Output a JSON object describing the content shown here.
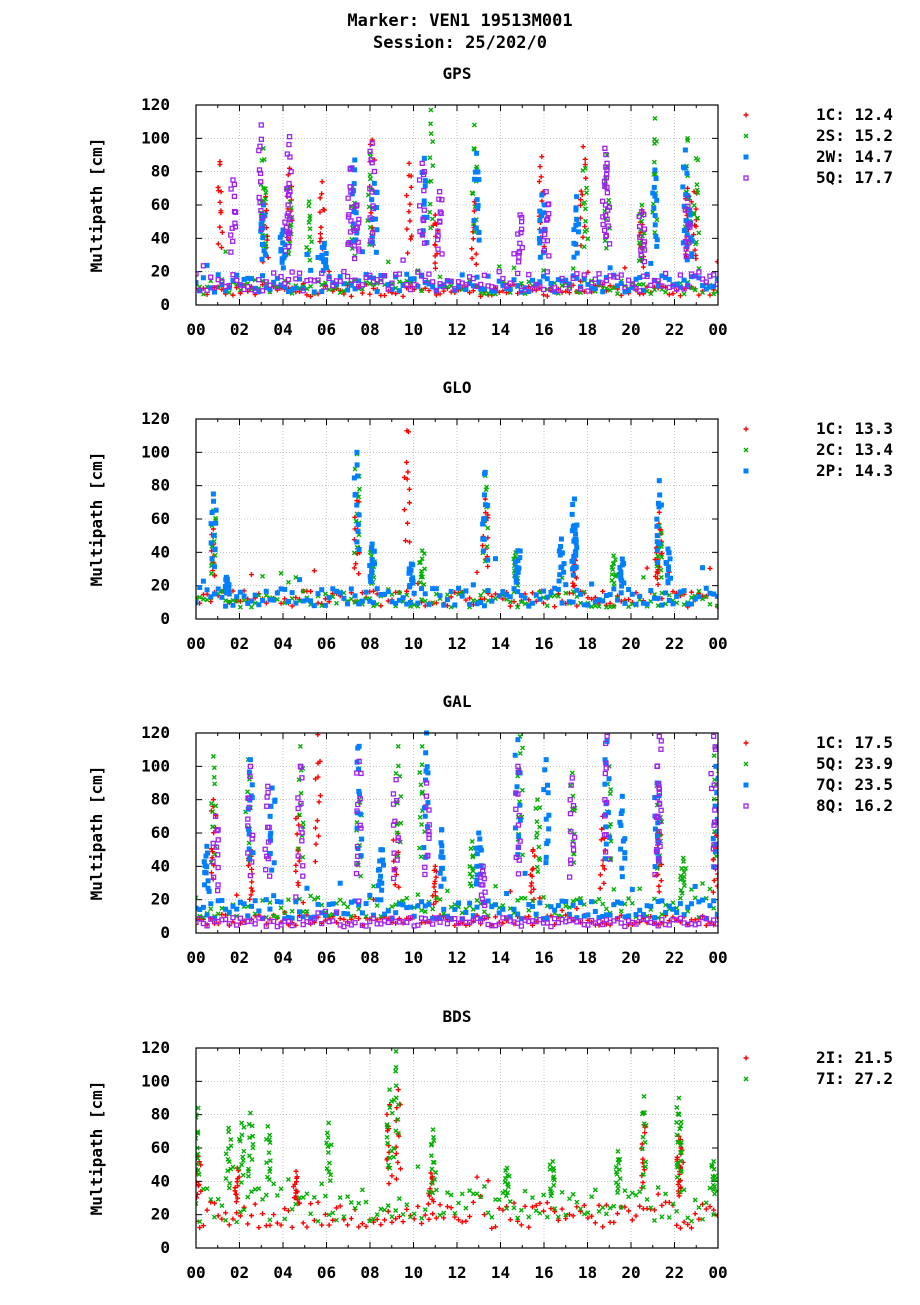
{
  "header": {
    "marker": "Marker: VEN1 19513M001",
    "session": "Session: 25/202/0"
  },
  "chart_data": [
    {
      "type": "scatter",
      "title": "GPS",
      "ylabel": "Multipath [cm]",
      "ylim": [
        0,
        120
      ],
      "xlim": [
        0,
        24
      ],
      "yticks": [
        "0",
        "20",
        "40",
        "60",
        "80",
        "100",
        "120"
      ],
      "xticks": [
        "00",
        "02",
        "04",
        "06",
        "08",
        "10",
        "12",
        "14",
        "16",
        "18",
        "20",
        "22",
        "00"
      ],
      "grid": true,
      "legend_position": "right",
      "series": [
        {
          "name": "1C",
          "stat": "12.4",
          "color": "#ff0000",
          "marker": "plus",
          "base": 8,
          "spikes": [
            [
              1.1,
              86
            ],
            [
              3.2,
              65
            ],
            [
              4.3,
              82
            ],
            [
              5.8,
              74
            ],
            [
              8.1,
              99
            ],
            [
              9.8,
              85
            ],
            [
              11.0,
              54
            ],
            [
              12.8,
              62
            ],
            [
              15.9,
              89
            ],
            [
              17.8,
              95
            ],
            [
              20.5,
              57
            ],
            [
              22.9,
              68
            ],
            [
              22.6,
              70
            ]
          ]
        },
        {
          "name": "2S",
          "stat": "15.2",
          "color": "#00b000",
          "marker": "cross",
          "base": 10,
          "spikes": [
            [
              3.1,
              94
            ],
            [
              3.1,
              70
            ],
            [
              4.3,
              70
            ],
            [
              5.2,
              62
            ],
            [
              7.2,
              71
            ],
            [
              8.0,
              91
            ],
            [
              10.8,
              117
            ],
            [
              12.8,
              108
            ],
            [
              18.9,
              90
            ],
            [
              17.9,
              82
            ],
            [
              21.1,
              112
            ],
            [
              22.6,
              100
            ],
            [
              23.0,
              88
            ],
            [
              20.5,
              60
            ]
          ]
        },
        {
          "name": "2W",
          "stat": "14.7",
          "color": "#0080ff",
          "marker": "square",
          "base": 12,
          "spikes": [
            [
              3.1,
              60
            ],
            [
              4.0,
              45
            ],
            [
              5.9,
              37
            ],
            [
              7.3,
              87
            ],
            [
              8.2,
              73
            ],
            [
              10.5,
              88
            ],
            [
              12.9,
              91
            ],
            [
              15.9,
              66
            ],
            [
              17.5,
              65
            ],
            [
              21.1,
              81
            ],
            [
              22.5,
              93
            ],
            [
              22.7,
              57
            ]
          ]
        },
        {
          "name": "5Q",
          "stat": "17.7",
          "color": "#a020f0",
          "marker": "open-square",
          "base": 13,
          "spikes": [
            [
              1.7,
              75
            ],
            [
              3.0,
              108
            ],
            [
              4.3,
              101
            ],
            [
              4.2,
              70
            ],
            [
              7.1,
              82
            ],
            [
              7.4,
              60
            ],
            [
              8.1,
              97
            ],
            [
              10.4,
              85
            ],
            [
              11.2,
              68
            ],
            [
              14.9,
              54
            ],
            [
              16.1,
              68
            ],
            [
              18.8,
              94
            ],
            [
              18.9,
              85
            ],
            [
              20.5,
              56
            ],
            [
              22.6,
              64
            ]
          ]
        }
      ]
    },
    {
      "type": "scatter",
      "title": "GLO",
      "ylabel": "Multipath [cm]",
      "ylim": [
        0,
        120
      ],
      "xlim": [
        0,
        24
      ],
      "yticks": [
        "0",
        "20",
        "40",
        "60",
        "80",
        "100",
        "120"
      ],
      "xticks": [
        "00",
        "02",
        "04",
        "06",
        "08",
        "10",
        "12",
        "14",
        "16",
        "18",
        "20",
        "22",
        "00"
      ],
      "grid": true,
      "legend_position": "right",
      "series": [
        {
          "name": "1C",
          "stat": "13.3",
          "color": "#ff0000",
          "marker": "plus",
          "base": 11,
          "spikes": [
            [
              0.8,
              54
            ],
            [
              7.4,
              71
            ],
            [
              9.7,
              113
            ],
            [
              13.3,
              72
            ],
            [
              17.4,
              36
            ],
            [
              21.3,
              64
            ],
            [
              21.2,
              43
            ]
          ]
        },
        {
          "name": "2C",
          "stat": "13.4",
          "color": "#00b000",
          "marker": "cross",
          "base": 11,
          "spikes": [
            [
              0.8,
              65
            ],
            [
              7.4,
              99
            ],
            [
              8.1,
              42
            ],
            [
              10.4,
              41
            ],
            [
              13.3,
              86
            ],
            [
              14.7,
              40
            ],
            [
              19.2,
              38
            ],
            [
              21.3,
              56
            ]
          ]
        },
        {
          "name": "2P",
          "stat": "14.3",
          "color": "#0080ff",
          "marker": "square",
          "base": 12,
          "spikes": [
            [
              0.8,
              75
            ],
            [
              1.4,
              25
            ],
            [
              7.4,
              100
            ],
            [
              8.1,
              45
            ],
            [
              9.9,
              33
            ],
            [
              13.3,
              88
            ],
            [
              14.8,
              41
            ],
            [
              16.8,
              48
            ],
            [
              17.4,
              72
            ],
            [
              17.4,
              56
            ],
            [
              19.6,
              36
            ],
            [
              21.3,
              83
            ],
            [
              21.7,
              42
            ]
          ]
        }
      ]
    },
    {
      "type": "scatter",
      "title": "GAL",
      "ylabel": "Multipath [cm]",
      "ylim": [
        0,
        120
      ],
      "xlim": [
        0,
        24
      ],
      "yticks": [
        "0",
        "20",
        "40",
        "60",
        "80",
        "100",
        "120"
      ],
      "xticks": [
        "00",
        "02",
        "04",
        "06",
        "08",
        "10",
        "12",
        "14",
        "16",
        "18",
        "20",
        "22",
        "00"
      ],
      "grid": true,
      "legend_position": "right",
      "series": [
        {
          "name": "1C",
          "stat": "17.5",
          "color": "#ff0000",
          "marker": "plus",
          "base": 7,
          "spikes": [
            [
              0.8,
              80
            ],
            [
              2.5,
              50
            ],
            [
              4.7,
              70
            ],
            [
              5.6,
              119
            ],
            [
              9.2,
              66
            ],
            [
              11.0,
              40
            ],
            [
              15.5,
              50
            ],
            [
              18.7,
              70
            ],
            [
              21.3,
              60
            ],
            [
              23.9,
              60
            ]
          ]
        },
        {
          "name": "5Q",
          "stat": "23.9",
          "color": "#00b000",
          "marker": "cross",
          "base": 14,
          "spikes": [
            [
              0.8,
              106
            ],
            [
              2.4,
              104
            ],
            [
              4.8,
              112
            ],
            [
              7.5,
              80
            ],
            [
              9.3,
              112
            ],
            [
              10.4,
              112
            ],
            [
              12.7,
              55
            ],
            [
              14.9,
              118
            ],
            [
              15.7,
              80
            ],
            [
              17.3,
              96
            ],
            [
              19.0,
              100
            ],
            [
              21.3,
              90
            ],
            [
              22.4,
              45
            ],
            [
              23.9,
              112
            ]
          ]
        },
        {
          "name": "7Q",
          "stat": "23.5",
          "color": "#0080ff",
          "marker": "square",
          "base": 13,
          "spikes": [
            [
              0.5,
              52
            ],
            [
              2.5,
              104
            ],
            [
              3.5,
              87
            ],
            [
              7.5,
              112
            ],
            [
              8.5,
              50
            ],
            [
              10.6,
              120
            ],
            [
              11.3,
              62
            ],
            [
              13.0,
              60
            ],
            [
              14.8,
              116
            ],
            [
              16.1,
              104
            ],
            [
              18.9,
              115
            ],
            [
              19.6,
              82
            ],
            [
              21.2,
              90
            ],
            [
              23.9,
              100
            ]
          ]
        },
        {
          "name": "8Q",
          "stat": "16.2",
          "color": "#a020f0",
          "marker": "open-square",
          "base": 6,
          "spikes": [
            [
              0.9,
              70
            ],
            [
              2.5,
              100
            ],
            [
              3.3,
              88
            ],
            [
              4.8,
              100
            ],
            [
              7.5,
              103
            ],
            [
              9.2,
              92
            ],
            [
              10.6,
              90
            ],
            [
              13.2,
              40
            ],
            [
              14.8,
              100
            ],
            [
              17.3,
              93
            ],
            [
              18.9,
              118
            ],
            [
              21.3,
              118
            ],
            [
              21.2,
              100
            ],
            [
              23.8,
              118
            ]
          ]
        }
      ]
    },
    {
      "type": "scatter",
      "title": "BDS",
      "ylabel": "Multipath [cm]",
      "ylim": [
        0,
        120
      ],
      "xlim": [
        0,
        24
      ],
      "yticks": [
        "0",
        "20",
        "40",
        "60",
        "80",
        "100",
        "120"
      ],
      "xticks": [
        "00",
        "02",
        "04",
        "06",
        "08",
        "10",
        "12",
        "14",
        "16",
        "18",
        "20",
        "22",
        "00"
      ],
      "grid": true,
      "legend_position": "right",
      "series": [
        {
          "name": "2I",
          "stat": "21.5",
          "color": "#ff0000",
          "marker": "plus",
          "base": 18,
          "spikes": [
            [
              0.1,
              55
            ],
            [
              1.9,
              48
            ],
            [
              4.6,
              46
            ],
            [
              8.9,
              86
            ],
            [
              9.3,
              95
            ],
            [
              10.8,
              45
            ],
            [
              20.6,
              74
            ],
            [
              22.2,
              67
            ],
            [
              22.3,
              60
            ]
          ]
        },
        {
          "name": "7I",
          "stat": "27.2",
          "color": "#00b000",
          "marker": "cross",
          "base": 24,
          "spikes": [
            [
              0.1,
              84
            ],
            [
              1.5,
              72
            ],
            [
              2.1,
              75
            ],
            [
              2.5,
              81
            ],
            [
              3.3,
              73
            ],
            [
              6.1,
              75
            ],
            [
              9.2,
              118
            ],
            [
              8.9,
              95
            ],
            [
              10.9,
              71
            ],
            [
              14.3,
              48
            ],
            [
              16.4,
              52
            ],
            [
              19.4,
              58
            ],
            [
              20.6,
              91
            ],
            [
              22.2,
              90
            ],
            [
              22.2,
              80
            ],
            [
              23.8,
              52
            ]
          ]
        }
      ]
    }
  ]
}
